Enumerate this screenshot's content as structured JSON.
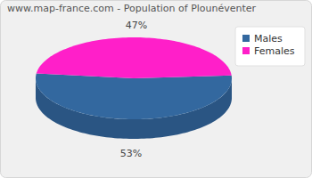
{
  "chart_data": {
    "type": "pie",
    "title": "www.map-france.com - Population of Plounéventer",
    "categories": [
      "Males",
      "Females"
    ],
    "values": [
      53,
      47
    ],
    "value_labels": [
      "53%",
      "47%"
    ],
    "colors": [
      "#33689f",
      "#ff1fc9"
    ],
    "data_labels": true,
    "legend": "top-right"
  }
}
